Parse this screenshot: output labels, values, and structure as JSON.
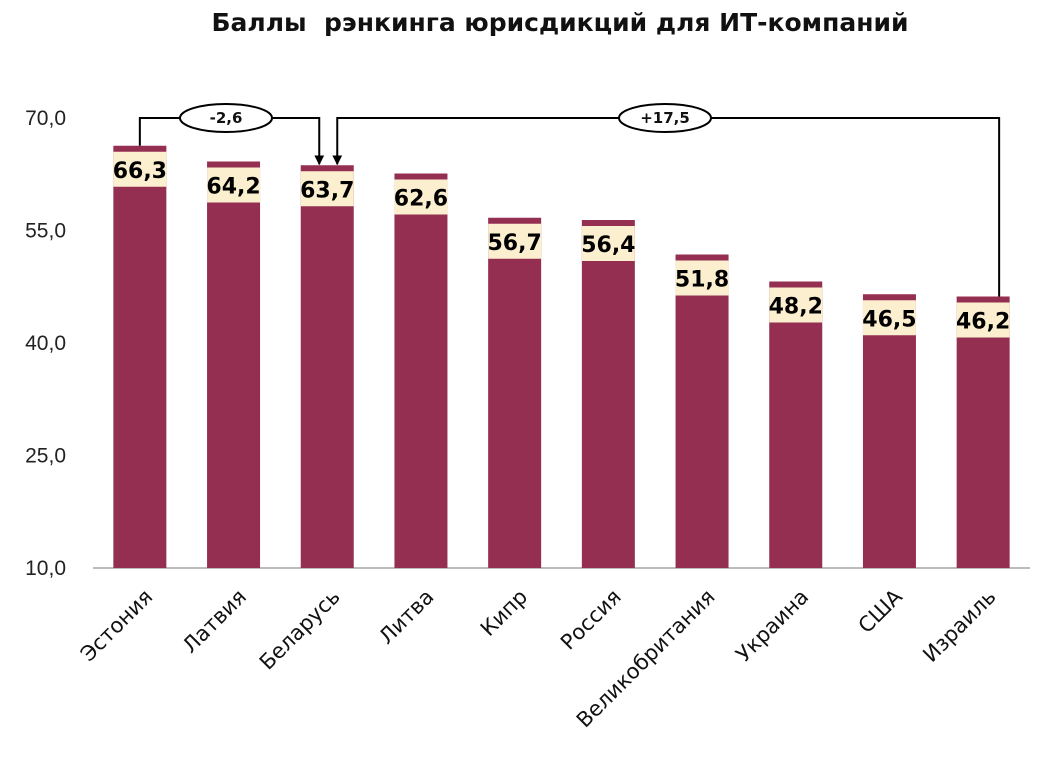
{
  "chart_data": {
    "type": "bar",
    "title": "Баллы  рэнкинга юрисдикций для ИТ-компаний",
    "categories": [
      "Эстония",
      "Латвия",
      "Беларусь",
      "Литва",
      "Кипр",
      "Россия",
      "Великобритания",
      "Украина",
      "США",
      "Израиль"
    ],
    "values": [
      66.3,
      64.2,
      63.7,
      62.6,
      56.7,
      56.4,
      51.8,
      48.2,
      46.5,
      46.2
    ],
    "data_labels": [
      "66,3",
      "64,2",
      "63,7",
      "62,6",
      "56,7",
      "56,4",
      "51,8",
      "48,2",
      "46,5",
      "46,2"
    ],
    "ylim": [
      10,
      70
    ],
    "yticks": [
      10,
      25,
      40,
      55,
      70
    ],
    "ytick_labels": [
      "10,0",
      "25,0",
      "40,0",
      "55,0",
      "70,0"
    ],
    "grid": false,
    "colors": {
      "bar": "#952f52",
      "label_bg": "#fbefcf",
      "axis": "#a6a6a6",
      "connector": "#000000"
    },
    "annotations": [
      {
        "text": "-2,6",
        "from": "Эстония",
        "to": "Беларусь"
      },
      {
        "text": "+17,5",
        "from": "Израиль",
        "to": "Беларусь"
      }
    ]
  }
}
